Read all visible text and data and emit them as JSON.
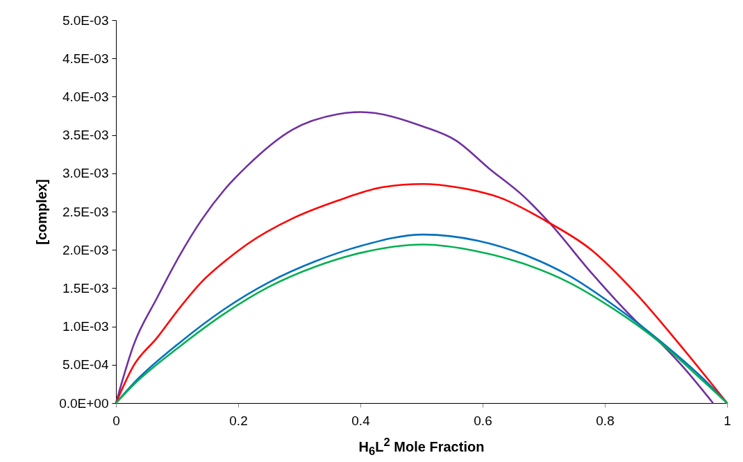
{
  "chart_data": {
    "type": "line",
    "xlabel": "H$_{6}$L$^{2}$ Mole Fraction",
    "ylabel": "[complex]",
    "xlim": [
      0,
      1
    ],
    "xticks": [
      0,
      0.2,
      0.4,
      0.6,
      0.8,
      1
    ],
    "ylim": [
      0,
      0.005
    ],
    "yticks": [
      {
        "value": 0,
        "label": "0.0E+00"
      },
      {
        "value": 0.0005,
        "label": "5.0E-04"
      },
      {
        "value": 0.001,
        "label": "1.0E-03"
      },
      {
        "value": 0.0015,
        "label": "1.5E-03"
      },
      {
        "value": 0.002,
        "label": "2.0E-03"
      },
      {
        "value": 0.0025,
        "label": "2.5E-03"
      },
      {
        "value": 0.003,
        "label": "3.0E-03"
      },
      {
        "value": 0.0035,
        "label": "3.5E-03"
      },
      {
        "value": 0.004,
        "label": "4.0E-03"
      },
      {
        "value": 0.0045,
        "label": "4.5E-03"
      },
      {
        "value": 0.005,
        "label": "5.0E-03"
      }
    ],
    "grid": false,
    "legend": false,
    "marker": "none",
    "line_style": "solid",
    "series": [
      {
        "color": "#7030a0",
        "x": [
          0,
          0.029,
          0.067,
          0.103,
          0.14,
          0.178,
          0.214,
          0.289,
          0.362,
          0.4,
          0.503,
          0.556,
          0.611,
          0.667,
          0.711,
          0.778,
          0.851,
          0.889,
          0.926,
          0.977
        ],
        "values": [
          0,
          0.00076,
          0.00137,
          0.00191,
          0.00239,
          0.00279,
          0.00309,
          0.00357,
          0.00377,
          0.0038,
          0.00361,
          0.00343,
          0.00306,
          0.0027,
          0.00234,
          0.0017,
          0.00107,
          0.0008,
          0.00049,
          0
        ]
      },
      {
        "color": "#ff0000",
        "x": [
          0,
          0.029,
          0.067,
          0.103,
          0.14,
          0.178,
          0.214,
          0.289,
          0.362,
          0.437,
          0.503,
          0.556,
          0.629,
          0.703,
          0.778,
          0.851,
          0.926,
          1
        ],
        "values": [
          0,
          0.00049,
          0.00085,
          0.00123,
          0.00158,
          0.00185,
          0.00207,
          0.00241,
          0.00264,
          0.00282,
          0.00286,
          0.00282,
          0.00268,
          0.00238,
          0.002,
          0.00143,
          0.00073,
          0
        ]
      },
      {
        "color": "#0070c0",
        "x": [
          0,
          0.029,
          0.103,
          0.178,
          0.251,
          0.326,
          0.4,
          0.503,
          0.592,
          0.667,
          0.74,
          0.814,
          0.889,
          0.962,
          1
        ],
        "values": [
          0,
          0.00026,
          0.00078,
          0.00123,
          0.00158,
          0.00185,
          0.00205,
          0.0022,
          0.00212,
          0.00194,
          0.00167,
          0.00128,
          0.00082,
          0.00031,
          0
        ]
      },
      {
        "color": "#00b050",
        "x": [
          0,
          0.029,
          0.103,
          0.178,
          0.251,
          0.326,
          0.4,
          0.503,
          0.592,
          0.667,
          0.74,
          0.814,
          0.889,
          0.962,
          1
        ],
        "values": [
          0,
          0.00024,
          0.00073,
          0.00117,
          0.00152,
          0.00178,
          0.00196,
          0.00207,
          0.00198,
          0.00182,
          0.00158,
          0.00123,
          0.0008,
          0.00028,
          0
        ]
      }
    ]
  }
}
